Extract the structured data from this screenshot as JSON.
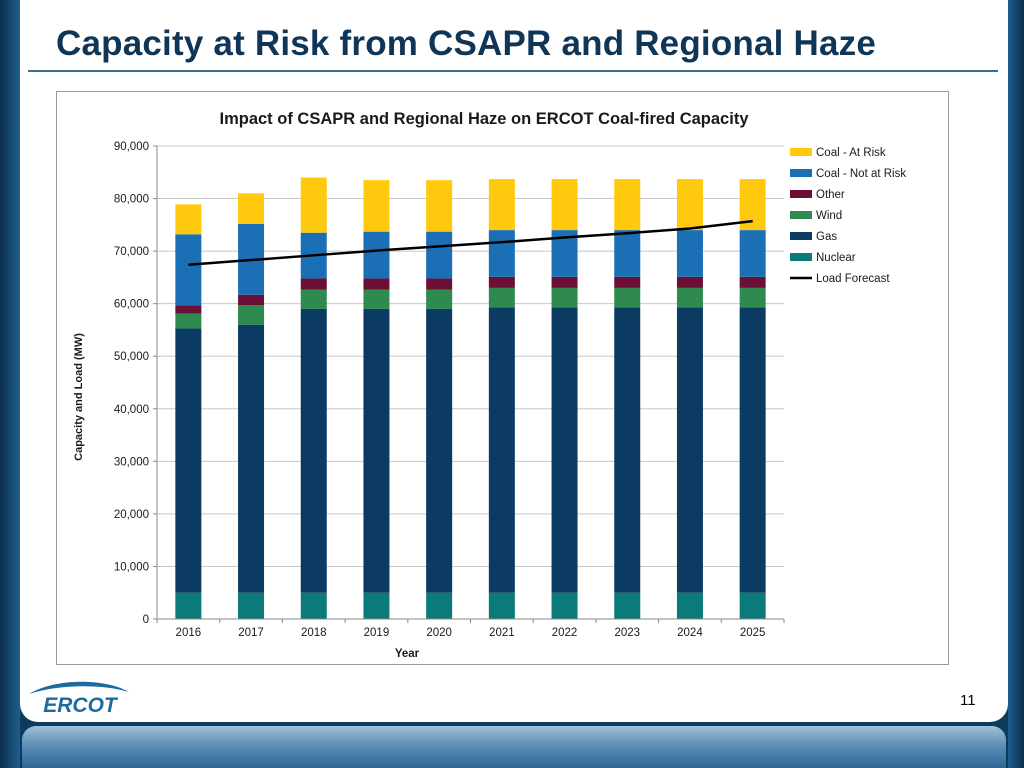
{
  "slide": {
    "title": "Capacity at Risk from CSAPR and Regional Haze",
    "page_number": "11",
    "logo_text": "ERCOT"
  },
  "colors": {
    "nuclear": "#0b7a7a",
    "gas": "#0b3a62",
    "wind": "#2e8a4e",
    "other": "#6b0f37",
    "coal_not_at_risk": "#1b6fb5",
    "coal_at_risk": "#ffc90e",
    "load": "#000000"
  },
  "chart_data": {
    "type": "bar",
    "stacked": true,
    "title": "Impact of CSAPR and Regional Haze on ERCOT Coal-fired Capacity",
    "xlabel": "Year",
    "ylabel": "Capacity and Load (MW)",
    "ylim": [
      0,
      90000
    ],
    "yticks": [
      0,
      10000,
      20000,
      30000,
      40000,
      50000,
      60000,
      70000,
      80000,
      90000
    ],
    "ytick_labels": [
      "0",
      "10,000",
      "20,000",
      "30,000",
      "40,000",
      "50,000",
      "60,000",
      "70,000",
      "80,000",
      "90,000"
    ],
    "grid": true,
    "legend_position": "right",
    "categories": [
      "2016",
      "2017",
      "2018",
      "2019",
      "2020",
      "2021",
      "2022",
      "2023",
      "2024",
      "2025"
    ],
    "series": [
      {
        "name": "Nuclear",
        "key": "nuclear",
        "values": [
          5000,
          5000,
          5000,
          5000,
          5000,
          5000,
          5000,
          5000,
          5000,
          5000
        ]
      },
      {
        "name": "Gas",
        "key": "gas",
        "values": [
          50300,
          51000,
          54000,
          54000,
          54000,
          54300,
          54300,
          54300,
          54300,
          54300
        ]
      },
      {
        "name": "Wind",
        "key": "wind",
        "values": [
          2800,
          3700,
          3700,
          3700,
          3700,
          3700,
          3700,
          3700,
          3700,
          3700
        ]
      },
      {
        "name": "Other",
        "key": "other",
        "values": [
          1600,
          2000,
          2100,
          2100,
          2100,
          2100,
          2100,
          2100,
          2100,
          2100
        ]
      },
      {
        "name": "Coal - Not at Risk",
        "key": "coal_not_at_risk",
        "values": [
          13500,
          13500,
          8700,
          8900,
          8900,
          8900,
          8900,
          8900,
          8900,
          8900
        ]
      },
      {
        "name": "Coal - At Risk",
        "key": "coal_at_risk",
        "values": [
          5700,
          5800,
          10500,
          9800,
          9800,
          9700,
          9700,
          9700,
          9700,
          9700
        ]
      }
    ],
    "line_series": {
      "name": "Load Forecast",
      "key": "load",
      "values": [
        67400,
        68300,
        69200,
        70100,
        70900,
        71700,
        72600,
        73400,
        74300,
        75700
      ]
    },
    "legend_order": [
      "Coal - At Risk",
      "Coal - Not at Risk",
      "Other",
      "Wind",
      "Gas",
      "Nuclear",
      "Load Forecast"
    ]
  }
}
